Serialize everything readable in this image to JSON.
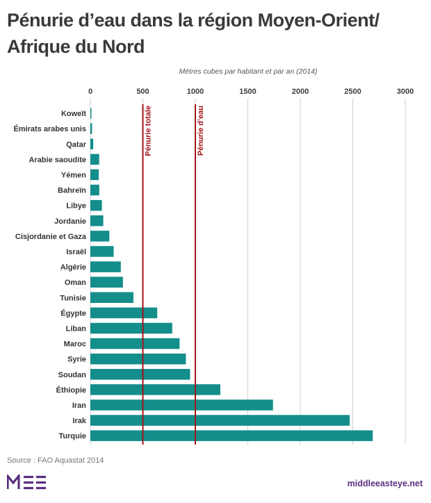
{
  "title": "Pénurie d’eau dans la région Moyen-Orient/ Afrique du Nord",
  "source": "Source : FAO Aquastat 2014",
  "site": "middleeasteye.net",
  "logo_text": "MEE",
  "colors": {
    "bar": "#138e8b",
    "threshold": "#a3131a",
    "grid": "#cfcfcf",
    "logo": "#5a3080"
  },
  "chart_data": {
    "type": "bar",
    "orientation": "horizontal",
    "title": "Pénurie d’eau dans la région Moyen-Orient/ Afrique du Nord",
    "subtitle": "Mètres cubes par habitant et par an (2014)",
    "xlim": [
      0,
      3000
    ],
    "xticks": [
      0,
      500,
      1000,
      1500,
      2000,
      2500,
      3000
    ],
    "grid": true,
    "categories": [
      "Koweït",
      "Émirats arabes unis",
      "Qatar",
      "Arabie saoudite",
      "Yémen",
      "Bahreïn",
      "Libye",
      "Jordanie",
      "Cisjordanie et Gaza",
      "Israël",
      "Algérie",
      "Oman",
      "Tunisie",
      "Égypte",
      "Liban",
      "Maroc",
      "Syrie",
      "Soudan",
      "Éthiopie",
      "Iran",
      "Irak",
      "Turquie"
    ],
    "values": [
      5,
      16,
      27,
      84,
      80,
      85,
      110,
      123,
      181,
      222,
      290,
      310,
      410,
      637,
      780,
      850,
      910,
      950,
      1238,
      1740,
      2470,
      2690
    ],
    "reference_lines": [
      {
        "value": 500,
        "label": "Pénurie totale"
      },
      {
        "value": 1000,
        "label": "Pénurie d’eau"
      }
    ]
  }
}
